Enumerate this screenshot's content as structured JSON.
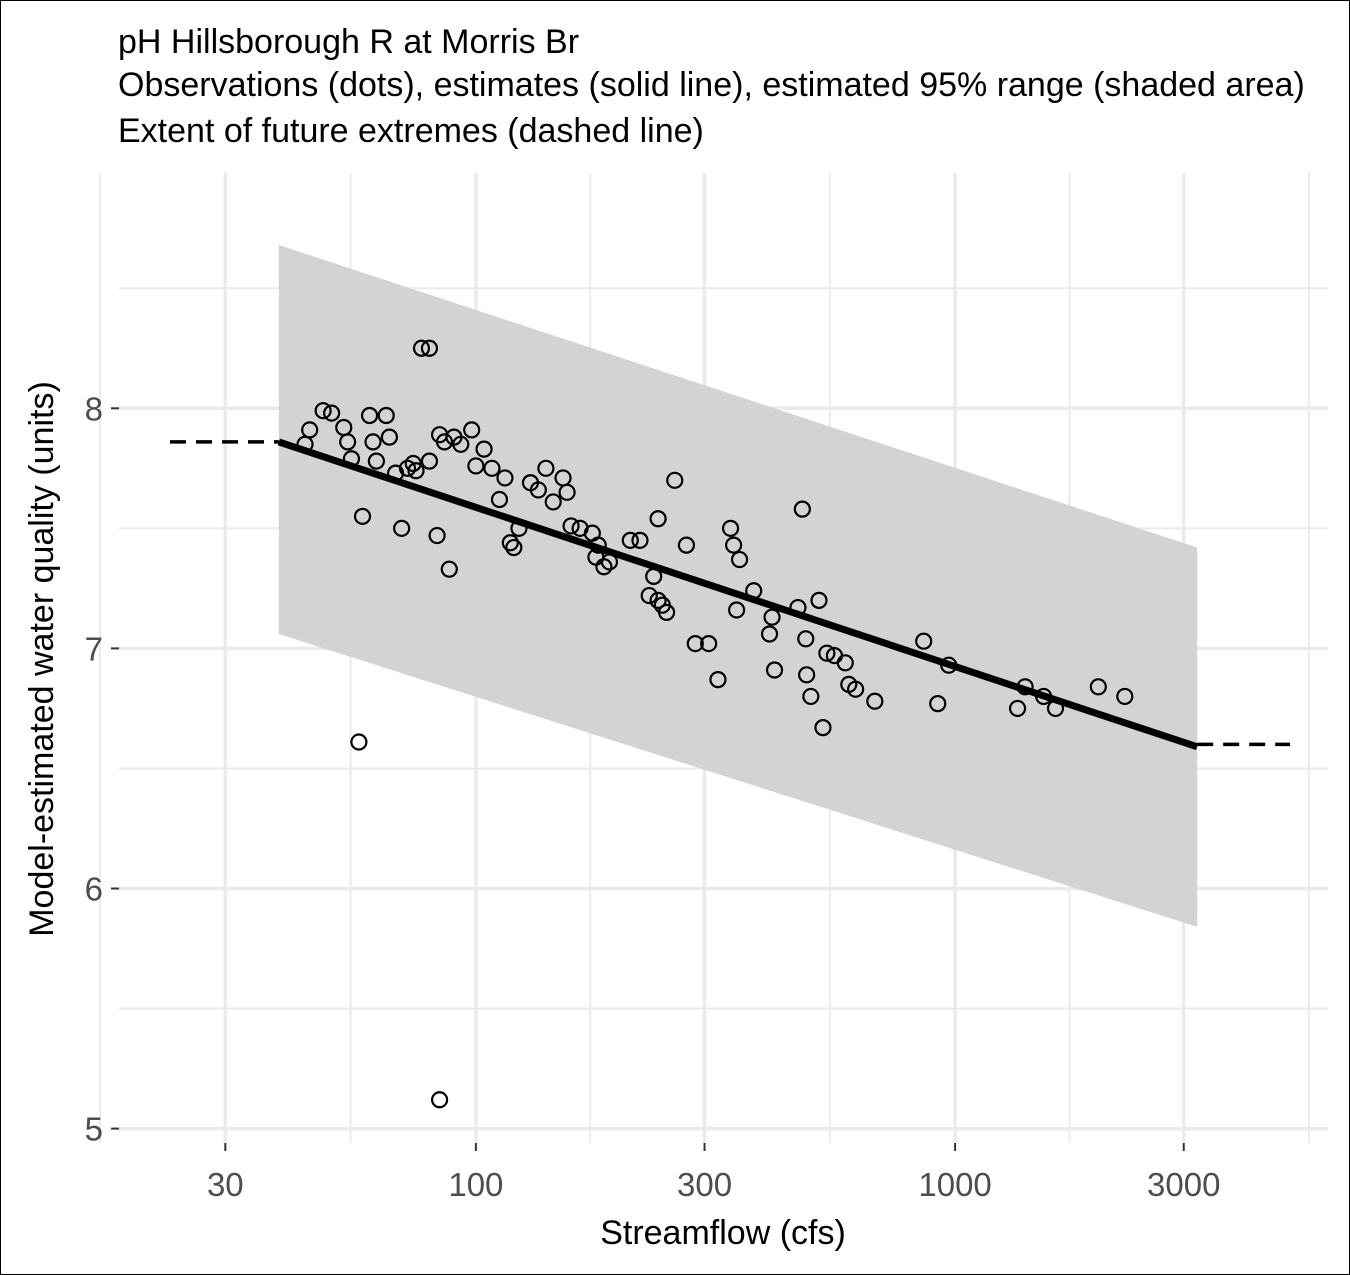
{
  "chart_data": {
    "type": "scatter",
    "title_lines": [
      "pH Hillsborough R at Morris Br",
      "Observations (dots), estimates (solid line), estimated 95% range (shaded area)",
      "Extent of future extremes (dashed line)"
    ],
    "xlabel": "Streamflow (cfs)",
    "ylabel": "Model-estimated water quality (units)",
    "x_scale": "log10",
    "xlim": [
      18,
      6000
    ],
    "ylim": [
      4.94,
      8.98
    ],
    "x_ticks": [
      30,
      100,
      300,
      1000,
      3000
    ],
    "x_tick_labels": [
      "30",
      "100",
      "300",
      "1000",
      "3000"
    ],
    "y_ticks": [
      5,
      6,
      7,
      8
    ],
    "y_tick_labels": [
      "5",
      "6",
      "7",
      "8"
    ],
    "grid": true,
    "colors": {
      "band": "#d3d3d3",
      "line": "#000000",
      "grid": "#ebebeb",
      "points": "#000000"
    },
    "estimate_line": {
      "x": [
        38.8,
        3200
      ],
      "y": [
        7.86,
        6.59
      ]
    },
    "range_band": {
      "x": [
        38.8,
        3200
      ],
      "upper": [
        8.68,
        7.42
      ],
      "lower": [
        7.06,
        5.84
      ]
    },
    "future_extremes": [
      {
        "x": [
          23,
          38.8
        ],
        "y": [
          7.86,
          7.86
        ]
      },
      {
        "x": [
          3200,
          5000
        ],
        "y": [
          6.6,
          6.6
        ]
      }
    ],
    "observations": {
      "x": [
        77,
        80,
        48,
        50,
        60,
        65,
        45,
        53,
        54,
        44,
        61,
        66,
        84,
        86,
        90,
        93,
        98,
        104,
        74,
        80,
        55,
        100,
        62,
        68,
        72,
        75,
        108,
        112,
        115,
        135,
        130,
        58,
        70,
        83,
        123,
        118,
        120,
        140,
        145,
        152,
        155,
        158,
        165,
        175,
        180,
        178,
        185,
        190,
        210,
        220,
        230,
        240,
        245,
        250,
        235,
        240,
        260,
        275,
        287,
        306,
        320,
        340,
        345,
        355,
        380,
        350,
        410,
        420,
        415,
        470,
        490,
        500,
        520,
        480,
        488,
        530,
        540,
        560,
        590,
        600,
        620,
        680,
        860,
        970,
        920,
        1350,
        1400,
        1530,
        1620,
        1990,
        2260,
        88,
        57,
        84
      ],
      "y": [
        8.25,
        8.25,
        7.99,
        7.98,
        7.97,
        7.97,
        7.91,
        7.92,
        7.86,
        7.85,
        7.86,
        7.88,
        7.89,
        7.86,
        7.88,
        7.85,
        7.91,
        7.83,
        7.77,
        7.78,
        7.79,
        7.76,
        7.78,
        7.73,
        7.75,
        7.74,
        7.75,
        7.62,
        7.71,
        7.66,
        7.69,
        7.55,
        7.5,
        7.47,
        7.5,
        7.44,
        7.42,
        7.75,
        7.61,
        7.71,
        7.65,
        7.51,
        7.5,
        7.48,
        7.43,
        7.38,
        7.34,
        7.36,
        7.45,
        7.45,
        7.22,
        7.2,
        7.18,
        7.15,
        7.3,
        7.54,
        7.7,
        7.43,
        7.02,
        7.02,
        6.87,
        7.5,
        7.43,
        7.37,
        7.24,
        7.16,
        7.06,
        6.91,
        7.13,
        7.17,
        6.89,
        6.8,
        7.2,
        7.58,
        7.04,
        6.67,
        6.98,
        6.97,
        6.94,
        6.85,
        6.83,
        6.78,
        7.03,
        6.93,
        6.77,
        6.75,
        6.84,
        6.8,
        6.75,
        6.84,
        6.8,
        7.33,
        6.61,
        5.12
      ]
    }
  }
}
